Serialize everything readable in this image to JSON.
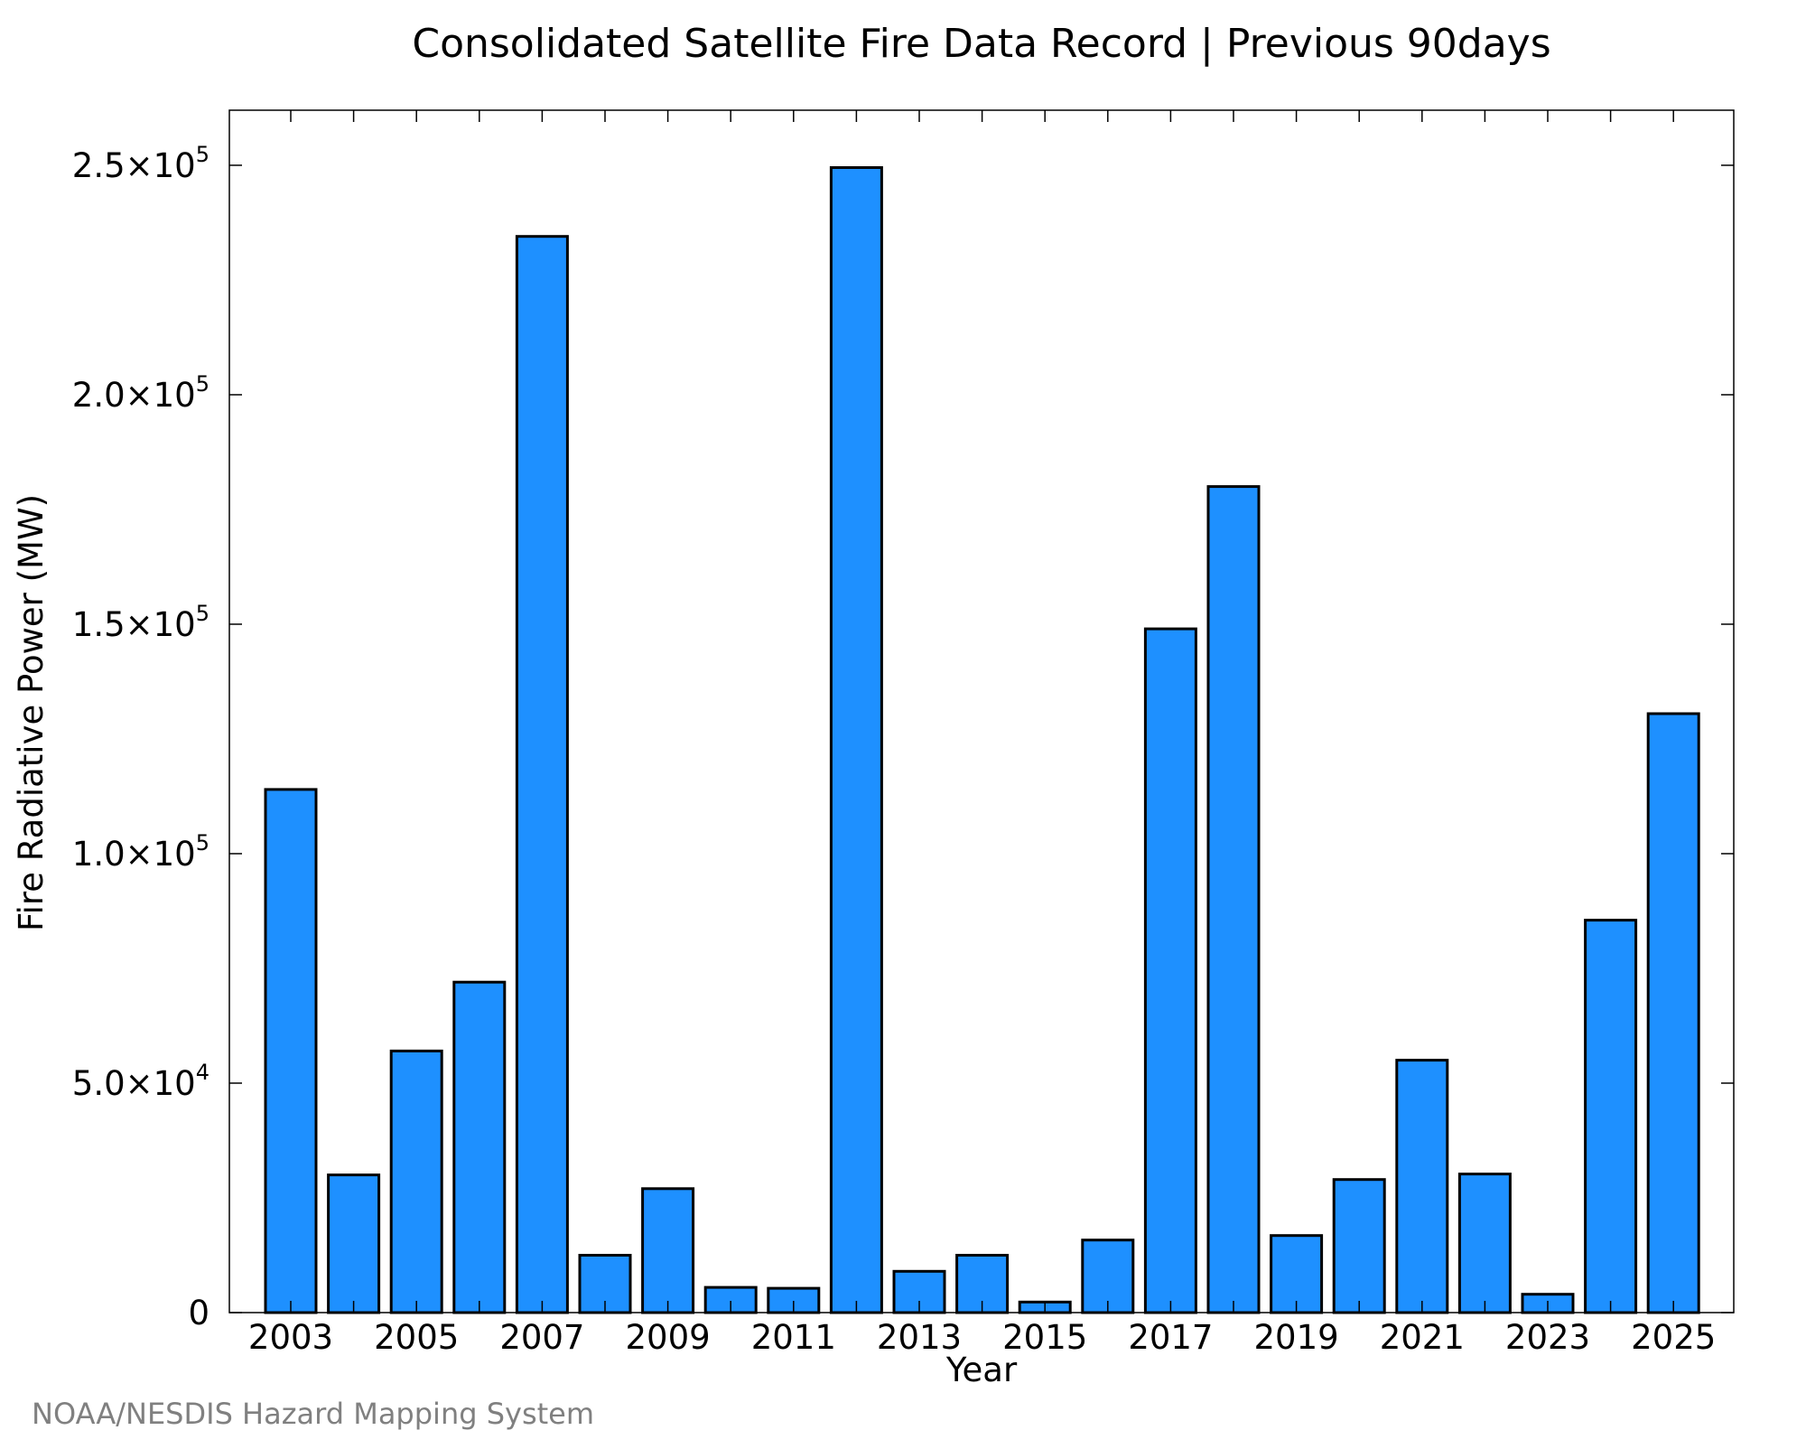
{
  "chart_data": {
    "type": "bar",
    "title": "Consolidated Satellite Fire Data Record | Previous 90days",
    "xlabel": "Year",
    "ylabel": "Fire Radiative Power (MW)",
    "categories": [
      "2003",
      "2004",
      "2005",
      "2006",
      "2007",
      "2008",
      "2009",
      "2010",
      "2011",
      "2012",
      "2013",
      "2014",
      "2015",
      "2016",
      "2017",
      "2018",
      "2019",
      "2020",
      "2021",
      "2022",
      "2023",
      "2024",
      "2025"
    ],
    "values": [
      114000,
      30000,
      57000,
      72000,
      234500,
      12500,
      27000,
      5500,
      5300,
      249500,
      9000,
      12500,
      2300,
      15800,
      149000,
      180000,
      16800,
      29000,
      55000,
      30200,
      4000,
      85500,
      130500
    ],
    "x_tick_labels": [
      "2003",
      "2005",
      "2007",
      "2009",
      "2011",
      "2013",
      "2015",
      "2017",
      "2019",
      "2021",
      "2023",
      "2025"
    ],
    "y_ticks": [
      {
        "value": 0,
        "mantissa": "0",
        "exponent": ""
      },
      {
        "value": 50000,
        "mantissa": "5.0×10",
        "exponent": "4"
      },
      {
        "value": 100000,
        "mantissa": "1.0×10",
        "exponent": "5"
      },
      {
        "value": 150000,
        "mantissa": "1.5×10",
        "exponent": "5"
      },
      {
        "value": 200000,
        "mantissa": "2.0×10",
        "exponent": "5"
      },
      {
        "value": 250000,
        "mantissa": "2.5×10",
        "exponent": "5"
      }
    ],
    "ylim": [
      0,
      262000
    ],
    "grid": false,
    "legend": "none",
    "bar_color": "#1e90ff",
    "bar_edge_color": "#000000"
  },
  "footer": {
    "credit": "NOAA/NESDIS Hazard Mapping System",
    "credit_color": "#808080"
  }
}
